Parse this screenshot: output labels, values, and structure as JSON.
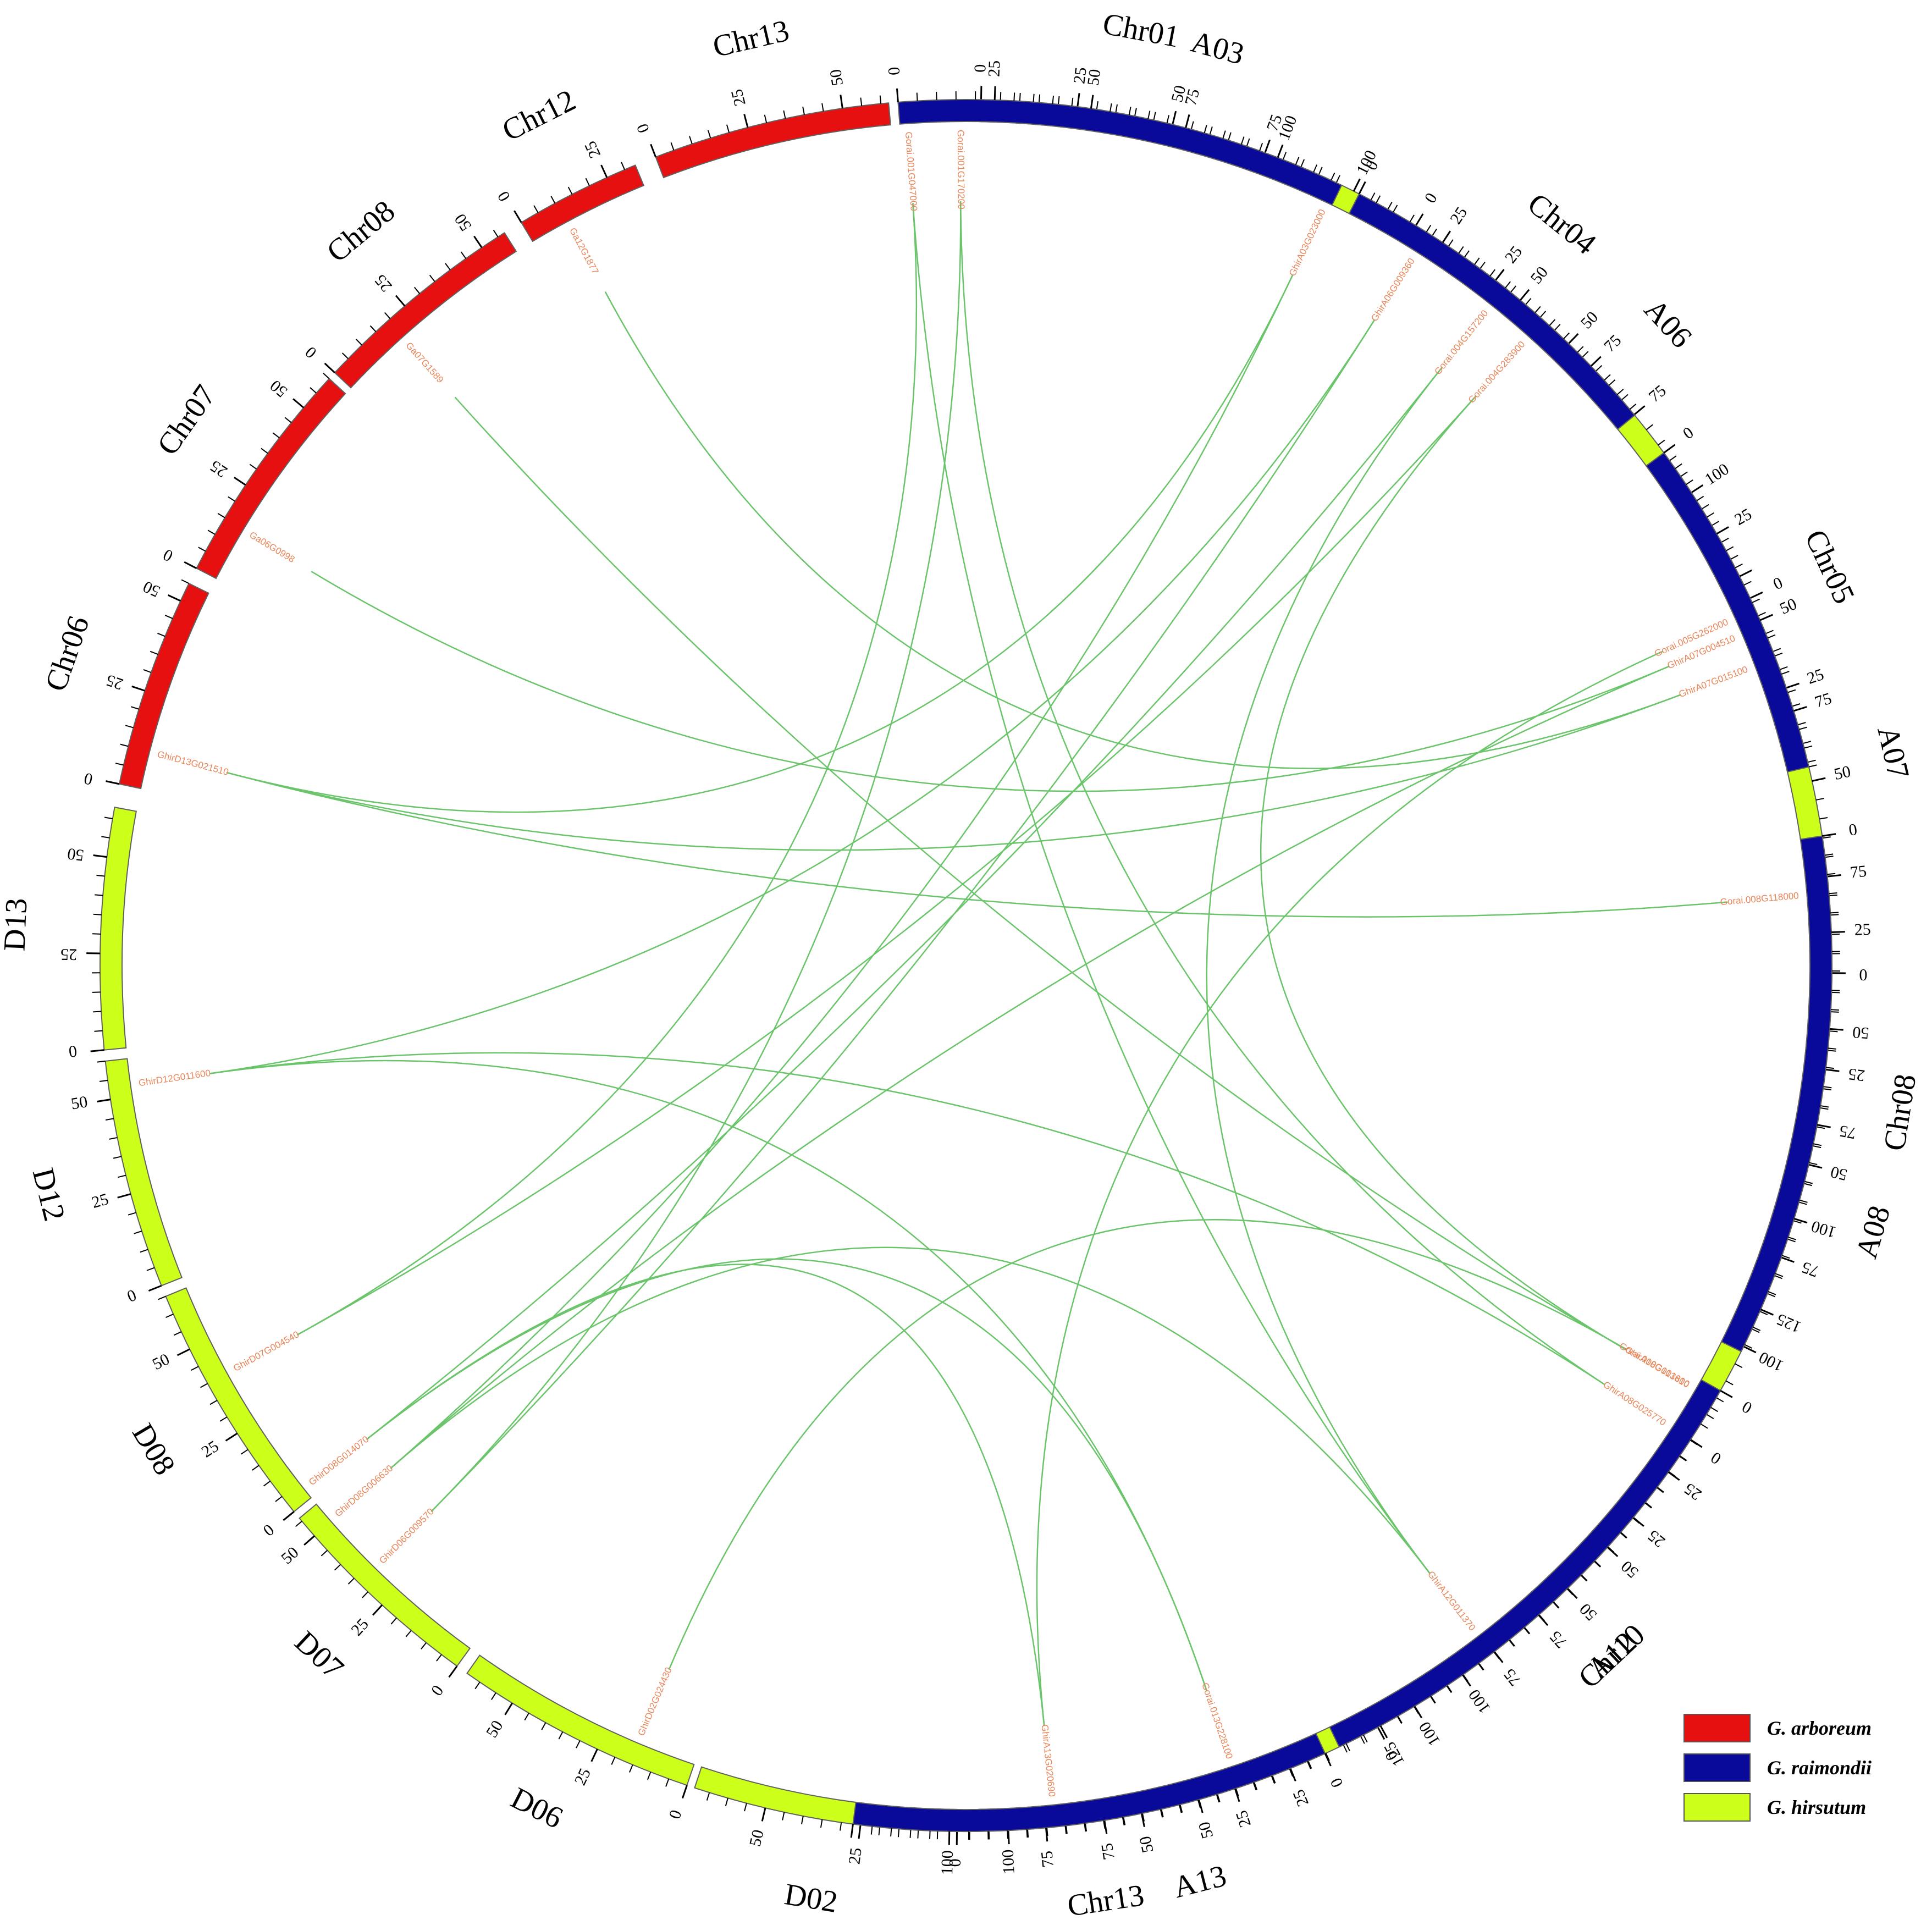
{
  "colors": {
    "arboreum": "#e61010",
    "raimondii": "#0a0a9a",
    "hirsutum": "#ccff1a",
    "link": "#6ac46a",
    "gene_label": "#e8865a"
  },
  "chromosomes": [
    {
      "label": "A03",
      "species": "hirsutum",
      "length": 112,
      "ticks": [
        0,
        25,
        50,
        75,
        100
      ]
    },
    {
      "label": "A06",
      "species": "hirsutum",
      "length": 127,
      "ticks": [
        0,
        25,
        50,
        75,
        100
      ]
    },
    {
      "label": "A07",
      "species": "hirsutum",
      "length": 95,
      "ticks": [
        0,
        25,
        50,
        75
      ]
    },
    {
      "label": "A08",
      "species": "hirsutum",
      "length": 124,
      "ticks": [
        0,
        25,
        50,
        75,
        100
      ]
    },
    {
      "label": "A12",
      "species": "hirsutum",
      "length": 107,
      "ticks": [
        0,
        25,
        50,
        75,
        100
      ]
    },
    {
      "label": "A13",
      "species": "hirsutum",
      "length": 110,
      "ticks": [
        0,
        25,
        50,
        75,
        100
      ]
    },
    {
      "label": "D02",
      "species": "hirsutum",
      "length": 69,
      "ticks": [
        0,
        25,
        50
      ]
    },
    {
      "label": "D06",
      "species": "hirsutum",
      "length": 64,
      "ticks": [
        0,
        25,
        50
      ]
    },
    {
      "label": "D07",
      "species": "hirsutum",
      "length": 56,
      "ticks": [
        0,
        25,
        50
      ]
    },
    {
      "label": "D08",
      "species": "hirsutum",
      "length": 65,
      "ticks": [
        0,
        25,
        50
      ]
    },
    {
      "label": "D12",
      "species": "hirsutum",
      "length": 60,
      "ticks": [
        0,
        25,
        50
      ]
    },
    {
      "label": "D13",
      "species": "hirsutum",
      "length": 63,
      "ticks": [
        0,
        25,
        50
      ]
    },
    {
      "label": "Chr06",
      "species": "arboreum",
      "length": 55,
      "ticks": [
        0,
        25,
        50
      ]
    },
    {
      "label": "Chr07",
      "species": "arboreum",
      "length": 60,
      "ticks": [
        0,
        25,
        50
      ]
    },
    {
      "label": "Chr08",
      "species": "arboreum",
      "length": 57,
      "ticks": [
        0,
        25,
        50
      ]
    },
    {
      "label": "Chr12",
      "species": "arboreum",
      "length": 33,
      "ticks": [
        0,
        25
      ]
    },
    {
      "label": "Chr13",
      "species": "arboreum",
      "length": 62,
      "ticks": [
        0,
        25,
        50
      ]
    },
    {
      "label": "Chr01",
      "species": "raimondii",
      "length": 118,
      "ticks": [
        0,
        25,
        50,
        75,
        100
      ]
    },
    {
      "label": "Chr04",
      "species": "raimondii",
      "length": 92,
      "ticks": [
        0,
        25,
        50,
        75
      ]
    },
    {
      "label": "Chr05",
      "species": "raimondii",
      "length": 90,
      "ticks": [
        0,
        25,
        50,
        75
      ]
    },
    {
      "label": "Chr08",
      "species": "raimondii",
      "length": 137,
      "ticks": [
        0,
        25,
        50,
        75,
        100,
        125
      ]
    },
    {
      "label": "Chr10",
      "species": "raimondii",
      "length": 137,
      "ticks": [
        0,
        25,
        50,
        75,
        100,
        125
      ]
    },
    {
      "label": "Chr13",
      "species": "raimondii",
      "length": 125,
      "ticks": [
        0,
        25,
        50,
        75,
        100
      ]
    }
  ],
  "genes": [
    {
      "name": "GhirA03G023000",
      "chr": 0,
      "pos": 95
    },
    {
      "name": "GhirA06G009360",
      "chr": 1,
      "pos": 4
    },
    {
      "name": "GhirA07G004510",
      "chr": 2,
      "pos": 8
    },
    {
      "name": "GhirA07G015100",
      "chr": 2,
      "pos": 17
    },
    {
      "name": "GhirA08G013810",
      "chr": 3,
      "pos": 116
    },
    {
      "name": "GhirA08G025770",
      "chr": 3,
      "pos": 128
    },
    {
      "name": "GhirA12G011370",
      "chr": 4,
      "pos": 76
    },
    {
      "name": "GhirA13G020690",
      "chr": 5,
      "pos": 88
    },
    {
      "name": "GhirD02G024430",
      "chr": 6,
      "pos": 87
    },
    {
      "name": "GhirD06G009570",
      "chr": 7,
      "pos": 100
    },
    {
      "name": "GhirD07G004540",
      "chr": 8,
      "pos": 98
    },
    {
      "name": "GhirD08G014070",
      "chr": 9,
      "pos": 3
    },
    {
      "name": "GhirD08G006630",
      "chr": 9,
      "pos": -8
    },
    {
      "name": "GhirD12G011600",
      "chr": 10,
      "pos": 53
    },
    {
      "name": "GhirD13G021510",
      "chr": 11,
      "pos": 79
    },
    {
      "name": "Ga06G0998",
      "chr": 12,
      "pos": 74
    },
    {
      "name": "Ga07G1589",
      "chr": 13,
      "pos": 81
    },
    {
      "name": "Ga12G1877",
      "chr": 16,
      "pos": -28
    },
    {
      "name": "Gorai.001G047000",
      "chr": 17,
      "pos": 2
    },
    {
      "name": "Gorai.001G170200",
      "chr": 17,
      "pos": 16
    },
    {
      "name": "Gorai.004G157200",
      "chr": 18,
      "pos": 45
    },
    {
      "name": "Gorai.004G283900",
      "chr": 18,
      "pos": 58
    },
    {
      "name": "Gorai.005G262000",
      "chr": 19,
      "pos": 47
    },
    {
      "name": "Gorai.008G118000",
      "chr": 20,
      "pos": 15
    },
    {
      "name": "Gorai.010G101600",
      "chr": 21,
      "pos": 3
    },
    {
      "name": "Gorai.013G228100",
      "chr": 22,
      "pos": 24
    }
  ],
  "links": [
    [
      "Gorai.013G228100",
      "GhirD12G011600"
    ],
    [
      "Gorai.013G228100",
      "GhirD08G014070"
    ],
    [
      "Gorai.010G101600",
      "GhirD02G024430"
    ],
    [
      "Gorai.008G118000",
      "GhirD13G021510"
    ],
    [
      "Gorai.005G262000",
      "GhirA13G020690"
    ],
    [
      "Gorai.004G283900",
      "GhirD07G004540"
    ],
    [
      "Gorai.004G283900",
      "GhirA08G013810"
    ],
    [
      "Gorai.004G157200",
      "GhirD08G014070"
    ],
    [
      "Gorai.004G157200",
      "GhirA12G011370"
    ],
    [
      "Gorai.001G170200",
      "GhirD06G009570"
    ],
    [
      "Gorai.001G170200",
      "GhirA08G025770"
    ],
    [
      "Gorai.001G047000",
      "GhirD07G004540"
    ],
    [
      "Gorai.001G047000",
      "GhirA12G011370"
    ],
    [
      "Ga12G1877",
      "GhirA07G015100"
    ],
    [
      "Ga07G1589",
      "GhirA08G013810"
    ],
    [
      "Ga06G0998",
      "GhirA07G004510"
    ],
    [
      "GhirA03G023000",
      "GhirD08G006630"
    ],
    [
      "GhirA03G023000",
      "GhirD13G021510"
    ],
    [
      "GhirA06G009360",
      "GhirD12G011600"
    ],
    [
      "GhirA06G009360",
      "GhirD06G009570"
    ],
    [
      "GhirA07G004510",
      "GhirD08G006630"
    ],
    [
      "GhirA07G015100",
      "GhirD13G021510"
    ],
    [
      "GhirA12G011370",
      "GhirD08G006630"
    ],
    [
      "GhirA08G025770",
      "GhirD12G011600"
    ],
    [
      "GhirA13G020690",
      "GhirD08G014070"
    ]
  ],
  "legend": [
    {
      "label": "G. arboreum",
      "color": "#e61010"
    },
    {
      "label": "G. raimondii",
      "color": "#0a0a9a"
    },
    {
      "label": "G. hirsutum",
      "color": "#ccff1a"
    }
  ]
}
